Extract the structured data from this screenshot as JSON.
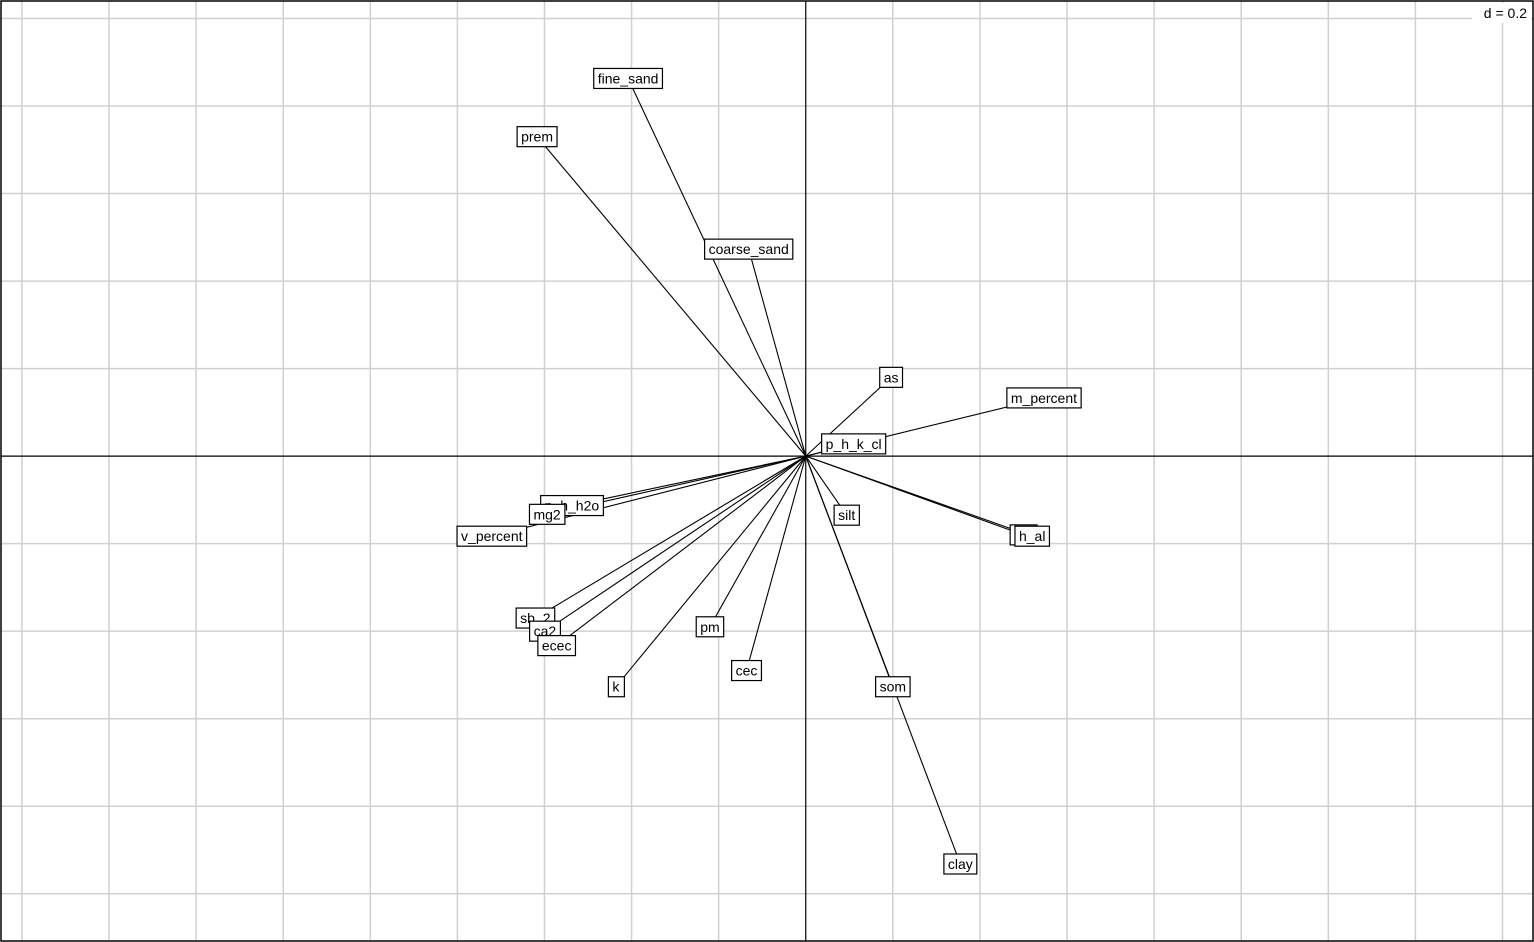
{
  "chart_data": {
    "type": "scatter",
    "subtype": "correlation-circle",
    "scale_label": "d = 0.2",
    "grid_step": 0.2,
    "xlim": [
      -1.848,
      1.67
    ],
    "ylim": [
      -1.108,
      1.04
    ],
    "grid": true,
    "arrows": [
      {
        "name": "fine_sand",
        "x": -0.408,
        "y": 0.863
      },
      {
        "name": "prem",
        "x": -0.617,
        "y": 0.73
      },
      {
        "name": "coarse_sand",
        "x": -0.131,
        "y": 0.473
      },
      {
        "name": "as",
        "x": 0.196,
        "y": 0.18
      },
      {
        "name": "m_percent",
        "x": 0.547,
        "y": 0.133
      },
      {
        "name": "p_h_k_cl",
        "x": 0.11,
        "y": 0.028
      },
      {
        "name": "p_h_h2o",
        "x": -0.537,
        "y": -0.113
      },
      {
        "name": "mg2",
        "x": -0.594,
        "y": -0.133
      },
      {
        "name": "v_percent",
        "x": -0.721,
        "y": -0.183
      },
      {
        "name": "silt",
        "x": 0.094,
        "y": -0.135
      },
      {
        "name": "al3",
        "x": 0.5,
        "y": -0.18
      },
      {
        "name": "h_al",
        "x": 0.52,
        "y": -0.183
      },
      {
        "name": "sb_2",
        "x": -0.621,
        "y": -0.37
      },
      {
        "name": "ca2",
        "x": -0.599,
        "y": -0.4
      },
      {
        "name": "ecec",
        "x": -0.572,
        "y": -0.433
      },
      {
        "name": "pm",
        "x": -0.22,
        "y": -0.39
      },
      {
        "name": "cec",
        "x": -0.136,
        "y": -0.49
      },
      {
        "name": "k",
        "x": -0.436,
        "y": -0.527
      },
      {
        "name": "som",
        "x": 0.2,
        "y": -0.527
      },
      {
        "name": "clay",
        "x": 0.355,
        "y": -0.932
      }
    ]
  }
}
